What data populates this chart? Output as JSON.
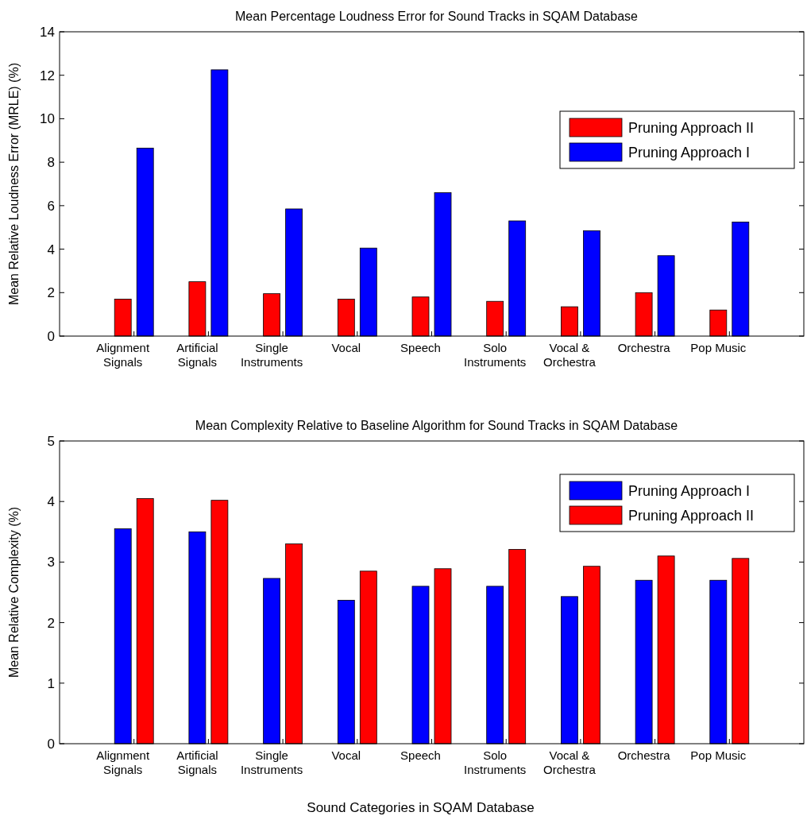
{
  "chart_data": [
    {
      "type": "bar",
      "title": "Mean Percentage Loudness Error for Sound Tracks in SQAM Database",
      "ylabel": "Mean Relative Loudness Error (MRLE) (%)",
      "categories": [
        "Alignment Signals",
        "Artificial Signals",
        "Single Instruments",
        "Vocal",
        "Speech",
        "Solo Instruments",
        "Vocal & Orchestra",
        "Orchestra",
        "Pop Music"
      ],
      "series": [
        {
          "name": "Pruning Approach II",
          "color": "#ff0000",
          "values": [
            1.7,
            2.5,
            1.95,
            1.7,
            1.8,
            1.6,
            1.35,
            2.0,
            1.2
          ]
        },
        {
          "name": "Pruning Approach I",
          "color": "#0000ff",
          "values": [
            8.65,
            12.25,
            5.85,
            4.05,
            6.6,
            5.3,
            4.85,
            3.7,
            5.25
          ]
        }
      ],
      "ylim": [
        0,
        14
      ],
      "yticks": [
        0,
        2,
        4,
        6,
        8,
        10,
        12,
        14
      ],
      "legend": "top right",
      "grid": false
    },
    {
      "type": "bar",
      "title": "Mean Complexity Relative to Baseline Algorithm for Sound Tracks in SQAM Database",
      "xlabel": "Sound Categories in SQAM Database",
      "ylabel": "Mean Relative Complexity (%)",
      "categories": [
        "Alignment Signals",
        "Artificial Signals",
        "Single Instruments",
        "Vocal",
        "Speech",
        "Solo Instruments",
        "Vocal & Orchestra",
        "Orchestra",
        "Pop Music"
      ],
      "series": [
        {
          "name": "Pruning Approach I",
          "color": "#0000ff",
          "values": [
            3.55,
            3.5,
            2.73,
            2.37,
            2.6,
            2.6,
            2.43,
            2.7,
            2.7
          ]
        },
        {
          "name": "Pruning Approach II",
          "color": "#ff0000",
          "values": [
            4.05,
            4.02,
            3.3,
            2.85,
            2.89,
            3.21,
            2.93,
            3.1,
            3.06
          ]
        }
      ],
      "ylim": [
        0,
        5
      ],
      "yticks": [
        0,
        1,
        2,
        3,
        4,
        5
      ],
      "legend": "top right",
      "grid": false
    }
  ]
}
